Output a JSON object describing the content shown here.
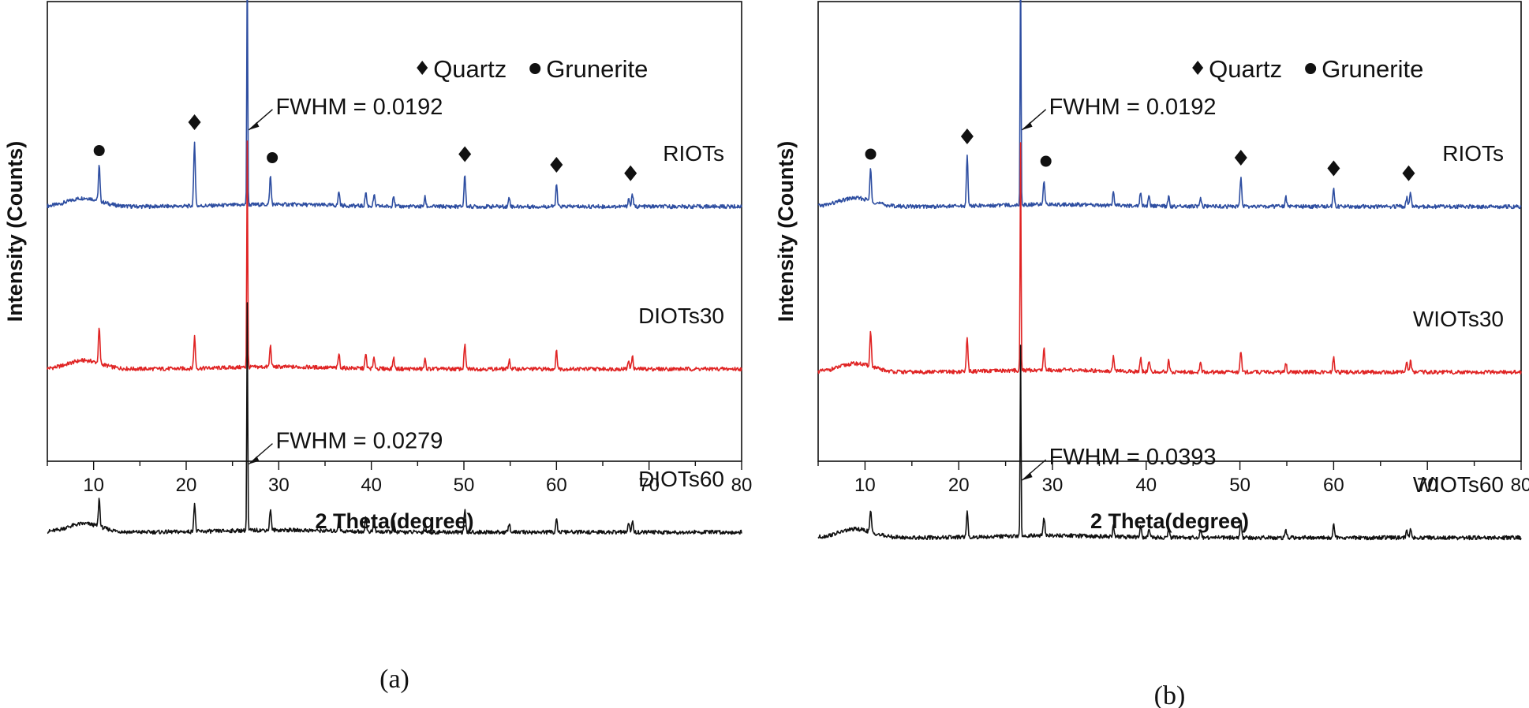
{
  "chart_data": [
    {
      "type": "line",
      "caption": "(a)",
      "xlabel": "2 Theta(degree)",
      "ylabel": "Intensity (Counts)",
      "xlim": [
        5,
        80
      ],
      "xticks": [
        10,
        20,
        30,
        40,
        50,
        60,
        70,
        80
      ],
      "legend": {
        "position": "top-right",
        "entries": [
          "Quartz",
          "Grunerite"
        ],
        "markers": [
          "diamond",
          "circle"
        ]
      },
      "series": [
        {
          "name": "RIOTs",
          "color": "#2e4ea1",
          "offset": 2,
          "peaks": [
            [
              10.6,
              5
            ],
            [
              20.9,
              9
            ],
            [
              26.6,
              36
            ],
            [
              29.1,
              4
            ],
            [
              36.5,
              2
            ],
            [
              39.4,
              2
            ],
            [
              40.3,
              1.5
            ],
            [
              42.4,
              1.6
            ],
            [
              45.8,
              1.3
            ],
            [
              50.1,
              4.5
            ],
            [
              54.9,
              1.3
            ],
            [
              60.0,
              3
            ],
            [
              67.8,
              1.2
            ],
            [
              68.2,
              1.8
            ]
          ]
        },
        {
          "name": "DIOTs30",
          "color": "#e02424",
          "offset": 1,
          "peaks": [
            [
              10.6,
              5
            ],
            [
              20.9,
              4.5
            ],
            [
              26.6,
              32
            ],
            [
              29.1,
              3
            ],
            [
              36.5,
              2
            ],
            [
              39.4,
              2
            ],
            [
              40.3,
              1.5
            ],
            [
              42.4,
              1.6
            ],
            [
              45.8,
              1.3
            ],
            [
              50.1,
              3.5
            ],
            [
              54.9,
              1.3
            ],
            [
              60.0,
              2.5
            ],
            [
              67.8,
              1.2
            ],
            [
              68.2,
              1.8
            ]
          ]
        },
        {
          "name": "DIOTs60",
          "color": "#111111",
          "offset": 0,
          "peaks": [
            [
              10.6,
              4
            ],
            [
              20.9,
              4
            ],
            [
              26.6,
              32
            ],
            [
              29.1,
              3
            ],
            [
              36.5,
              2
            ],
            [
              39.4,
              2
            ],
            [
              40.3,
              1.5
            ],
            [
              42.4,
              1.6
            ],
            [
              45.8,
              1.3
            ],
            [
              50.1,
              3
            ],
            [
              54.9,
              1.3
            ],
            [
              60.0,
              2
            ],
            [
              67.8,
              1.2
            ],
            [
              68.2,
              1.6
            ]
          ]
        }
      ],
      "quartz_markers": [
        20.9,
        26.6,
        50.1,
        60.0,
        68.0
      ],
      "grunerite_markers": [
        10.6,
        29.3
      ],
      "annotations": [
        {
          "series": "RIOTs",
          "text": "FWHM = 0.0192",
          "x": 26.6
        },
        {
          "series": "DIOTs60",
          "text": "FWHM = 0.0279",
          "x": 26.6
        }
      ]
    },
    {
      "type": "line",
      "caption": "(b)",
      "xlabel": "2 Theta(degree)",
      "ylabel": "Intensity (Counts)",
      "xlim": [
        5,
        80
      ],
      "xticks": [
        10,
        20,
        30,
        40,
        50,
        60,
        70,
        80
      ],
      "legend": {
        "position": "top-right",
        "entries": [
          "Quartz",
          "Grunerite"
        ],
        "markers": [
          "diamond",
          "circle"
        ]
      },
      "series": [
        {
          "name": "RIOTs",
          "color": "#2e4ea1",
          "offset": 2,
          "peaks": [
            [
              10.6,
              4.5
            ],
            [
              20.9,
              7
            ],
            [
              26.6,
              36
            ],
            [
              29.1,
              3.5
            ],
            [
              36.5,
              2
            ],
            [
              39.4,
              2
            ],
            [
              40.3,
              1.5
            ],
            [
              42.4,
              1.6
            ],
            [
              45.8,
              1.3
            ],
            [
              50.1,
              4
            ],
            [
              54.9,
              1.3
            ],
            [
              60.0,
              2.5
            ],
            [
              67.8,
              1.2
            ],
            [
              68.2,
              1.8
            ]
          ]
        },
        {
          "name": "WIOTs30",
          "color": "#e02424",
          "offset": 1,
          "peaks": [
            [
              10.6,
              5
            ],
            [
              20.9,
              5
            ],
            [
              26.6,
              32
            ],
            [
              29.1,
              3
            ],
            [
              36.5,
              2
            ],
            [
              39.4,
              2
            ],
            [
              40.3,
              1.5
            ],
            [
              42.4,
              1.6
            ],
            [
              45.8,
              1.3
            ],
            [
              50.1,
              3
            ],
            [
              54.9,
              1.3
            ],
            [
              60.0,
              2
            ],
            [
              67.8,
              1.2
            ],
            [
              68.2,
              1.6
            ]
          ]
        },
        {
          "name": "WIOTs60",
          "color": "#111111",
          "offset": 0,
          "peaks": [
            [
              10.6,
              3
            ],
            [
              20.9,
              3.5
            ],
            [
              26.6,
              27
            ],
            [
              29.1,
              2.5
            ],
            [
              36.5,
              1.5
            ],
            [
              39.4,
              1.5
            ],
            [
              40.3,
              1.2
            ],
            [
              42.4,
              1.3
            ],
            [
              45.8,
              1.1
            ],
            [
              50.1,
              2.5
            ],
            [
              54.9,
              1.1
            ],
            [
              60.0,
              1.8
            ],
            [
              67.8,
              1.0
            ],
            [
              68.2,
              1.4
            ]
          ]
        }
      ],
      "quartz_markers": [
        20.9,
        26.6,
        50.1,
        60.0,
        68.0
      ],
      "grunerite_markers": [
        10.6,
        29.3
      ],
      "annotations": [
        {
          "series": "RIOTs",
          "text": "FWHM = 0.0192",
          "x": 26.6
        },
        {
          "series": "WIOTs60",
          "text": "FWHM = 0.0393",
          "x": 26.6
        }
      ]
    }
  ]
}
